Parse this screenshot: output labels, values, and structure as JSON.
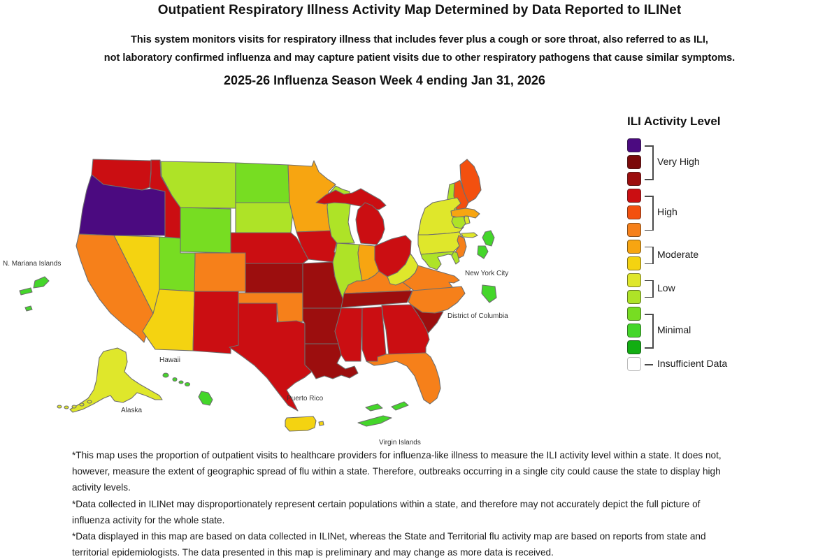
{
  "header": {
    "title": "Outpatient Respiratory Illness Activity Map Determined by Data Reported to ILINet",
    "subtitle_line1": "This system monitors visits for respiratory illness that includes fever plus a cough or sore throat, also referred to as ILI,",
    "subtitle_line2": "not laboratory confirmed influenza and may capture patient visits due to other respiratory pathogens that cause similar symptoms.",
    "season_week": "2025-26 Influenza Season Week 4 ending Jan 31, 2026"
  },
  "legend": {
    "title": "ILI Activity Level",
    "colors": [
      "#4B0A80",
      "#7B0A0A",
      "#9C0E0E",
      "#CB0E12",
      "#F3500F",
      "#F6801A",
      "#F7A511",
      "#F4D311",
      "#DFE72B",
      "#AEE327",
      "#77DD22",
      "#44D62A",
      "#12AE12"
    ],
    "groups": [
      {
        "label": "Very High",
        "start": 0,
        "end": 2
      },
      {
        "label": "High",
        "start": 3,
        "end": 5
      },
      {
        "label": "Moderate",
        "start": 6,
        "end": 7
      },
      {
        "label": "Low",
        "start": 8,
        "end": 9
      },
      {
        "label": "Minimal",
        "start": 10,
        "end": 12
      }
    ],
    "insufficient_label": "Insufficient Data",
    "insufficient_color": "#FFFFFF"
  },
  "map_labels": {
    "n_mariana": "N. Mariana Islands",
    "new_york_city": "New York City",
    "district_of_columbia": "District of Columbia",
    "hawaii": "Hawaii",
    "alaska": "Alaska",
    "puerto_rico": "Puerto Rico",
    "virgin_islands": "Virgin Islands"
  },
  "footnotes": [
    "*This map uses the proportion of outpatient visits to healthcare providers for influenza-like illness to measure the ILI activity level within a state. It does not, however, measure the extent of geographic spread of flu within a state. Therefore, outbreaks occurring in a single city could cause the state to display high activity levels.",
    "*Data collected in ILINet may disproportionately represent certain populations within a state, and therefore may not accurately depict the full picture of influenza activity for the whole state.",
    "*Data displayed in this map are based on data collected in ILINet, whereas the State and Territorial flu activity map are based on reports from state and territorial epidemiologists. The data presented in this map is preliminary and may change as more data is received."
  ],
  "chart_data": {
    "type": "choropleth",
    "title": "Outpatient Respiratory Illness Activity Map Determined by Data Reported to ILINet",
    "week": "2025-26 Influenza Season Week 4 ending Jan 31, 2026",
    "legend_categories": [
      "Very High",
      "High",
      "Moderate",
      "Low",
      "Minimal",
      "Insufficient Data"
    ],
    "areas": {
      "WA": {
        "category": "High",
        "color_index": 3
      },
      "OR": {
        "category": "Very High",
        "color_index": 0
      },
      "ID": {
        "category": "High",
        "color_index": 3
      },
      "MT": {
        "category": "Low",
        "color_index": 9
      },
      "ND": {
        "category": "Minimal",
        "color_index": 10
      },
      "SD": {
        "category": "Low",
        "color_index": 9
      },
      "WY": {
        "category": "Minimal",
        "color_index": 10
      },
      "NE": {
        "category": "High",
        "color_index": 3
      },
      "KS": {
        "category": "Very High",
        "color_index": 2
      },
      "CO": {
        "category": "High",
        "color_index": 5
      },
      "UT": {
        "category": "Minimal",
        "color_index": 10
      },
      "NV": {
        "category": "Moderate",
        "color_index": 7
      },
      "CA": {
        "category": "High",
        "color_index": 5
      },
      "AZ": {
        "category": "Moderate",
        "color_index": 7
      },
      "NM": {
        "category": "High",
        "color_index": 3
      },
      "OK": {
        "category": "High",
        "color_index": 5
      },
      "TX": {
        "category": "High",
        "color_index": 3
      },
      "MN": {
        "category": "Moderate",
        "color_index": 6
      },
      "IA": {
        "category": "High",
        "color_index": 3
      },
      "MO": {
        "category": "Very High",
        "color_index": 2
      },
      "AR": {
        "category": "Very High",
        "color_index": 2
      },
      "LA": {
        "category": "Very High",
        "color_index": 2
      },
      "WI": {
        "category": "Low",
        "color_index": 9
      },
      "IL": {
        "category": "Low",
        "color_index": 9
      },
      "MS": {
        "category": "High",
        "color_index": 3
      },
      "MI": {
        "category": "High",
        "color_index": 3
      },
      "IN": {
        "category": "Moderate",
        "color_index": 6
      },
      "OH": {
        "category": "High",
        "color_index": 3
      },
      "KY": {
        "category": "High",
        "color_index": 5
      },
      "TN": {
        "category": "Very High",
        "color_index": 2
      },
      "AL": {
        "category": "High",
        "color_index": 3
      },
      "GA": {
        "category": "High",
        "color_index": 3
      },
      "FL": {
        "category": "High",
        "color_index": 5
      },
      "SC": {
        "category": "Very High",
        "color_index": 2
      },
      "NC": {
        "category": "High",
        "color_index": 5
      },
      "VA": {
        "category": "High",
        "color_index": 5
      },
      "WV": {
        "category": "Low",
        "color_index": 8
      },
      "PA": {
        "category": "Low",
        "color_index": 8
      },
      "NY": {
        "category": "Low",
        "color_index": 8
      },
      "ME": {
        "category": "High",
        "color_index": 4
      },
      "NH": {
        "category": "High",
        "color_index": 4
      },
      "VT": {
        "category": "Low",
        "color_index": 9
      },
      "MA": {
        "category": "Moderate",
        "color_index": 6
      },
      "CT": {
        "category": "Low",
        "color_index": 9
      },
      "RI": {
        "category": "Low",
        "color_index": 8
      },
      "NJ": {
        "category": "High",
        "color_index": 5
      },
      "MD": {
        "category": "Low",
        "color_index": 9
      },
      "DE": {
        "category": "Low",
        "color_index": 9
      },
      "AK": {
        "category": "Low",
        "color_index": 8
      },
      "HI": {
        "category": "Minimal",
        "color_index": 11
      },
      "DC": {
        "category": "Minimal",
        "color_index": 11
      },
      "NYC": {
        "category": "Minimal",
        "color_index": 11
      },
      "PR": {
        "category": "Moderate",
        "color_index": 7
      },
      "VI": {
        "category": "Minimal",
        "color_index": 11
      },
      "MP": {
        "category": "Minimal",
        "color_index": 11
      }
    }
  }
}
